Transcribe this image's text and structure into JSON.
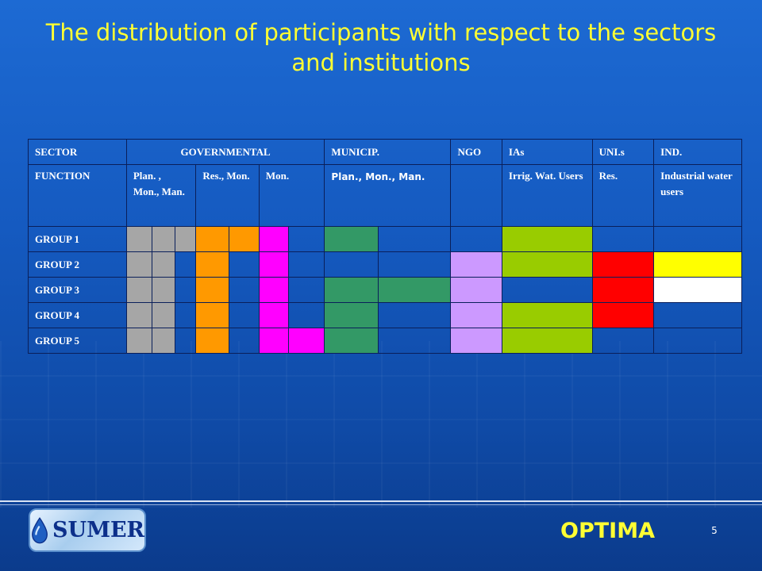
{
  "slide": {
    "title": "The distribution of participants with respect to the sectors and institutions",
    "page_number": "5",
    "optima": "OPTIMA",
    "logo_text": "SUMER"
  },
  "table": {
    "sector_label": "SECTOR",
    "sectors": [
      "GOVERNMENTAL",
      "MUNICIP.",
      "NGO",
      "IAs",
      "UNI.s",
      "IND."
    ],
    "function_label": "FUNCTION",
    "functions": [
      "Plan. , Mon., Man.",
      "Res., Mon.",
      "Mon.",
      "Plan., Mon., Man.",
      "",
      "Irrig. Wat. Users",
      "Res.",
      "Industrial water users"
    ],
    "groups": [
      {
        "label": "GROUP 1",
        "cells": [
          "gray",
          "gray",
          "gray",
          "orange",
          "orange",
          "magenta",
          "",
          "green",
          "",
          "",
          "lime",
          "",
          ""
        ]
      },
      {
        "label": "GROUP 2",
        "cells": [
          "gray",
          "gray",
          "",
          "orange",
          "",
          "magenta",
          "",
          "",
          "",
          "lilac",
          "lime",
          "red",
          "yellow"
        ]
      },
      {
        "label": "GROUP 3",
        "cells": [
          "gray",
          "gray",
          "",
          "orange",
          "",
          "magenta",
          "",
          "green",
          "green",
          "lilac",
          "",
          "red",
          "white"
        ]
      },
      {
        "label": "GROUP 4",
        "cells": [
          "gray",
          "gray",
          "",
          "orange",
          "",
          "magenta",
          "",
          "green",
          "",
          "lilac",
          "lime",
          "red",
          ""
        ]
      },
      {
        "label": "GROUP 5",
        "cells": [
          "gray",
          "gray",
          "",
          "orange",
          "",
          "magenta",
          "magenta",
          "green",
          "",
          "lilac",
          "lime",
          "",
          ""
        ]
      }
    ],
    "colors": {
      "gray": "#a6a6a6",
      "orange": "#ff9900",
      "magenta": "#ff00ff",
      "green": "#339966",
      "lime": "#99cc00",
      "lilac": "#cc99ff",
      "red": "#ff0000",
      "yellow": "#ffff00",
      "white": "#ffffff"
    }
  }
}
